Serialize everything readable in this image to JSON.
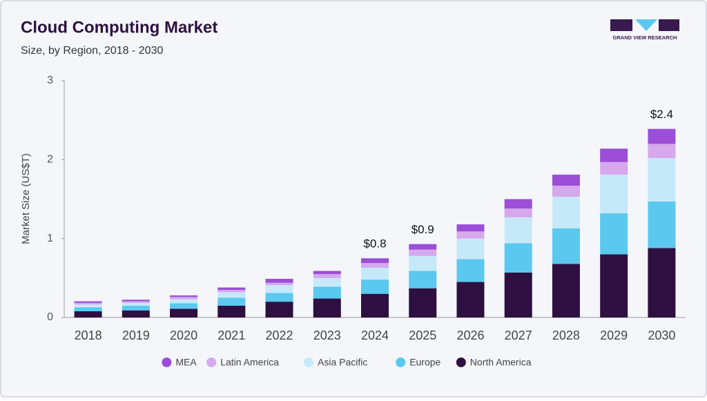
{
  "chart_data": {
    "type": "stacked-bar",
    "title": "Cloud Computing Market",
    "subtitle": "Size, by Region, 2018 - 2030",
    "brand": "GRAND VIEW RESEARCH",
    "y_label": "Market Size (US$T)",
    "categories": [
      "2018",
      "2019",
      "2020",
      "2021",
      "2022",
      "2023",
      "2024",
      "2025",
      "2026",
      "2027",
      "2028",
      "2029",
      "2030"
    ],
    "series": [
      {
        "name": "North America",
        "color": "#2d1040",
        "values": [
          0.08,
          0.09,
          0.11,
          0.15,
          0.2,
          0.24,
          0.3,
          0.37,
          0.45,
          0.57,
          0.68,
          0.8,
          0.88
        ]
      },
      {
        "name": "Europe",
        "color": "#5bc8f0",
        "values": [
          0.05,
          0.06,
          0.07,
          0.1,
          0.11,
          0.15,
          0.18,
          0.22,
          0.29,
          0.37,
          0.45,
          0.52,
          0.59
        ]
      },
      {
        "name": "Asia Pacific",
        "color": "#c6e9f9",
        "values": [
          0.035,
          0.035,
          0.05,
          0.07,
          0.1,
          0.11,
          0.15,
          0.19,
          0.26,
          0.33,
          0.4,
          0.49,
          0.55
        ]
      },
      {
        "name": "Latin America",
        "color": "#d6a8ec",
        "values": [
          0.02,
          0.02,
          0.03,
          0.03,
          0.03,
          0.05,
          0.06,
          0.08,
          0.09,
          0.11,
          0.14,
          0.16,
          0.18
        ]
      },
      {
        "name": "MEA",
        "color": "#9b4fd6",
        "values": [
          0.02,
          0.02,
          0.02,
          0.03,
          0.05,
          0.04,
          0.06,
          0.07,
          0.09,
          0.12,
          0.14,
          0.17,
          0.19
        ]
      }
    ],
    "total_labels": [
      {
        "category": "2024",
        "value": 0.75,
        "label": "$0.8"
      },
      {
        "category": "2025",
        "value": 0.93,
        "label": "$0.9"
      },
      {
        "category": "2030",
        "value": 2.39,
        "label": "$2.4"
      }
    ],
    "ylim": [
      0,
      3
    ],
    "yticks": [
      0,
      1,
      2,
      3
    ],
    "grid": false,
    "legend": "bottom"
  }
}
